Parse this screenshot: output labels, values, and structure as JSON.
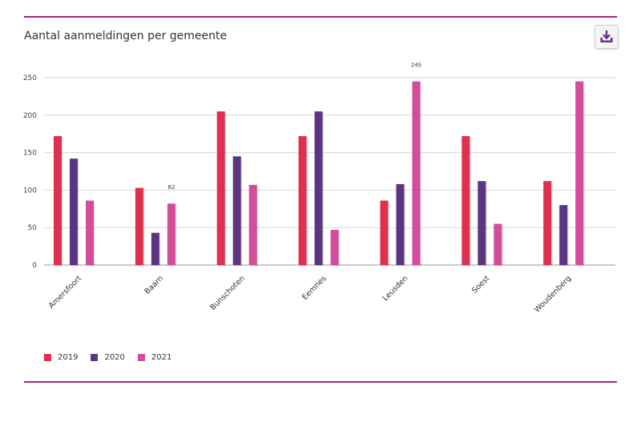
{
  "header": {
    "title": "Aantal aanmeldingen per gemeente",
    "download_icon": "download-tray-icon"
  },
  "colors": {
    "accent": "#a0267f",
    "s2019": "#e0304f",
    "s2020": "#5c3580",
    "s2021": "#d44d9b"
  },
  "chart_data": {
    "type": "bar",
    "categories": [
      "Amersfoort",
      "Baarn",
      "Bunschoten",
      "Eemnes",
      "Leusden",
      "Soest",
      "Woudenberg"
    ],
    "series": [
      {
        "name": "2019",
        "color": "#e0304f",
        "values": [
          172,
          103,
          205,
          172,
          86,
          172,
          112
        ]
      },
      {
        "name": "2020",
        "color": "#5c3580",
        "values": [
          142,
          43,
          145,
          205,
          108,
          112,
          80
        ]
      },
      {
        "name": "2021",
        "color": "#d44d9b",
        "values": [
          86,
          82,
          107,
          47,
          245,
          55,
          245
        ]
      }
    ],
    "yticks": [
      "0",
      "50",
      "100",
      "150",
      "200",
      "250"
    ],
    "ylim": [
      0,
      250
    ],
    "data_labels": [
      {
        "series": 2,
        "category": 1,
        "text": "82"
      },
      {
        "series": 2,
        "category": 4,
        "text": "245"
      }
    ],
    "grid": true,
    "legend": "bottom-left"
  }
}
